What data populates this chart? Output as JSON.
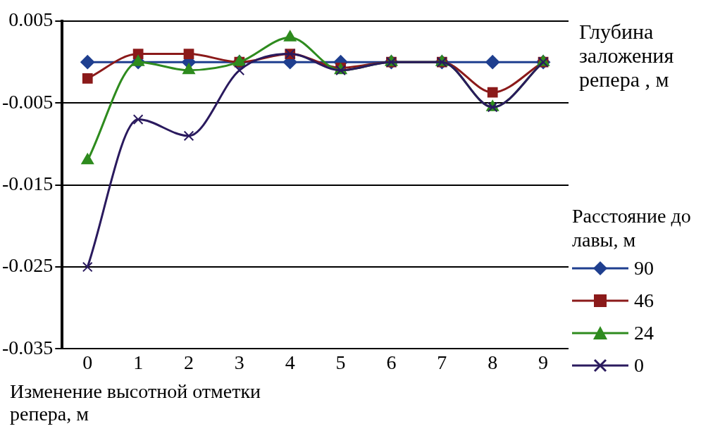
{
  "chart_data": {
    "type": "line",
    "ylabel": "Изменение высотной отметки репера, м",
    "legend_title": "Расстояние до лавы, м",
    "annotations": [
      "Глубина заложения репера , м"
    ],
    "categories": [
      "0",
      "1",
      "2",
      "3",
      "4",
      "5",
      "6",
      "7",
      "8",
      "9"
    ],
    "series": [
      {
        "name": "90",
        "color": "#1f3f8f",
        "marker": "diamond",
        "values": [
          0,
          0,
          0,
          0,
          0,
          0,
          0,
          0,
          0,
          0
        ]
      },
      {
        "name": "46",
        "color": "#8b1a1a",
        "marker": "square",
        "values": [
          -0.002,
          0.001,
          0.001,
          0,
          0.001,
          -0.0007,
          0,
          0,
          -0.0037,
          0
        ]
      },
      {
        "name": "24",
        "color": "#2e8b1e",
        "marker": "triangle",
        "values": [
          -0.012,
          0,
          -0.001,
          0,
          0.003,
          -0.001,
          0,
          0,
          -0.0055,
          0
        ]
      },
      {
        "name": "0",
        "color": "#2a1a5e",
        "marker": "cross",
        "values": [
          -0.025,
          -0.007,
          -0.009,
          -0.001,
          0.001,
          -0.001,
          0,
          0,
          -0.0055,
          0
        ]
      }
    ],
    "ylim": [
      -0.035,
      0.005
    ],
    "yticks": [
      -0.035,
      -0.025,
      -0.015,
      -0.005,
      0.005
    ],
    "grid": "y",
    "legend": "right"
  }
}
